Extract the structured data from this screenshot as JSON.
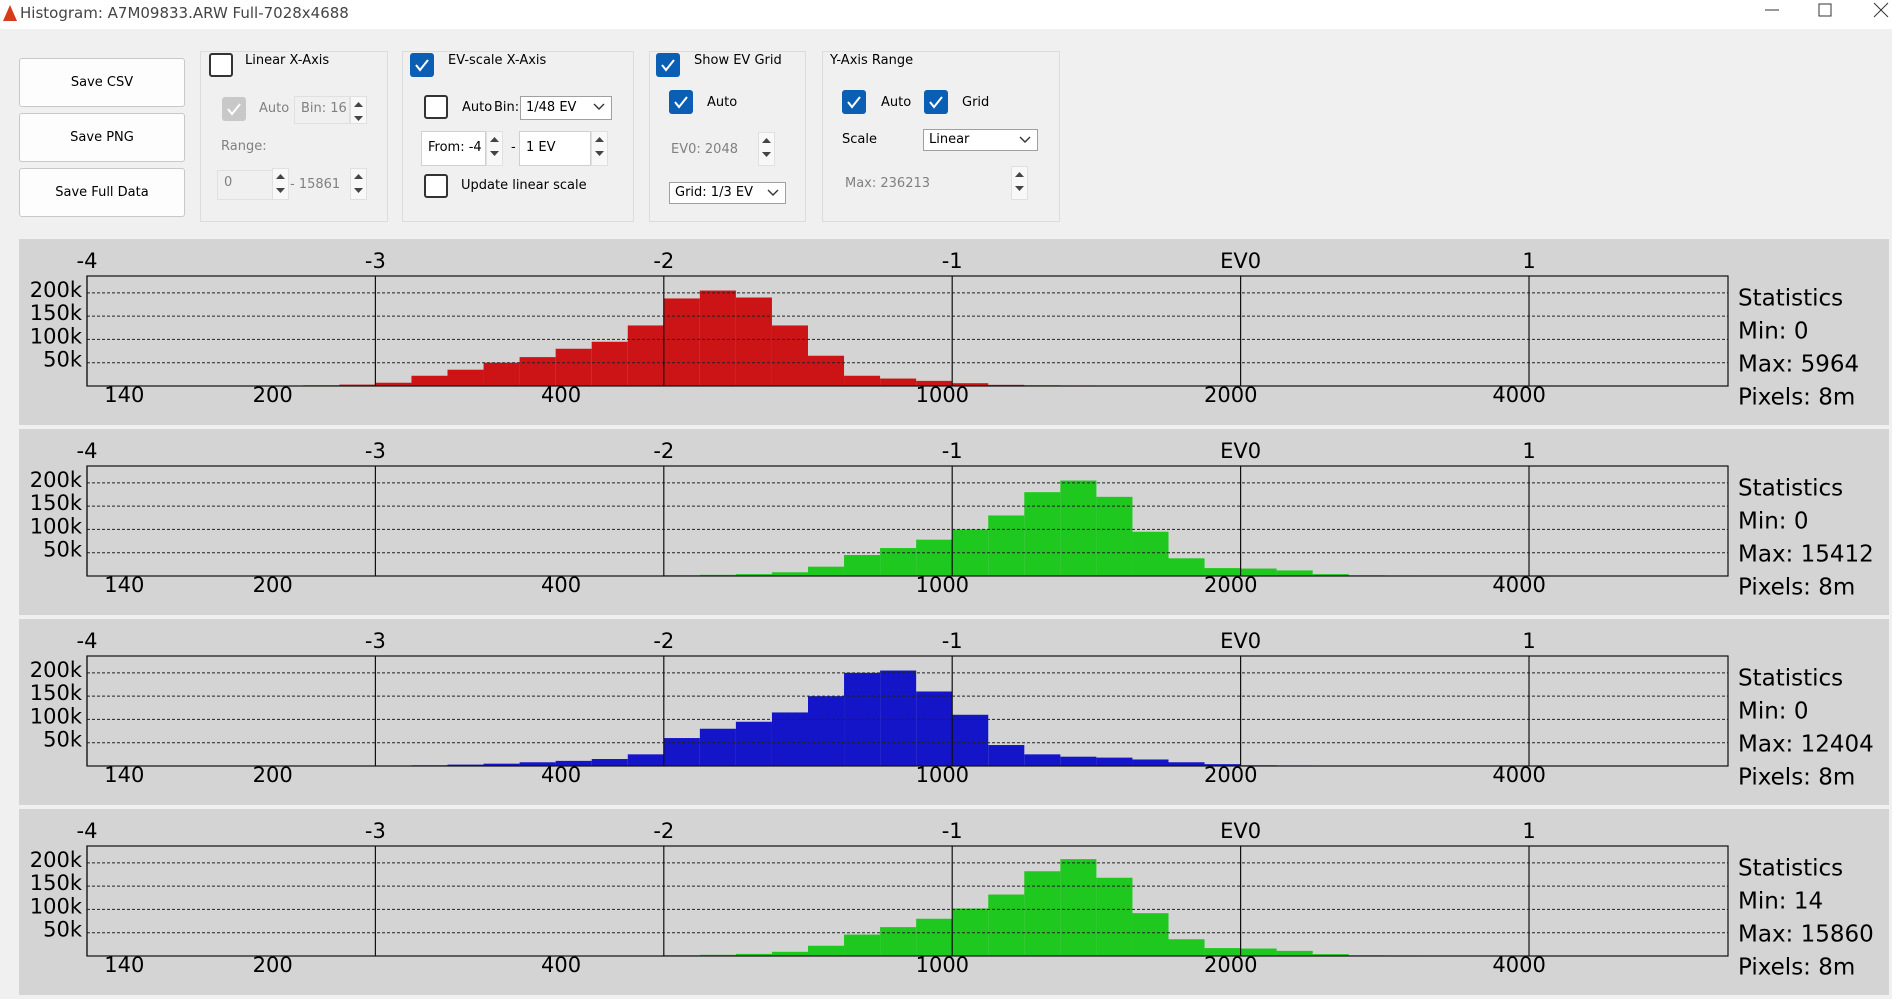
{
  "window": {
    "title": "Histogram: A7M09833.ARW Full-7028x4688"
  },
  "toolbar": {
    "buttons": [
      "Save CSV",
      "Save PNG",
      "Save Full Data"
    ],
    "linear": {
      "title": "Linear X-Axis",
      "auto": "Auto",
      "bin": "Bin: 16",
      "range": "Range:",
      "from": "0",
      "to": "- 15861"
    },
    "ev": {
      "title": "EV-scale X-Axis",
      "auto": "Auto",
      "bin_label": "Bin:",
      "bin": "1/48 EV",
      "from": "From: -4",
      "dash": "-",
      "to": "1 EV",
      "update": "Update linear scale"
    },
    "grid": {
      "title": "Show EV Grid",
      "auto": "Auto",
      "grid": "Grid: 1/3 EV"
    },
    "ev0": {
      "label": "EV0:",
      "value": 2048
    },
    "yaxis": {
      "title": "Y-Axis Range",
      "auto": "Auto",
      "grid": "Grid",
      "scale_label": "Scale",
      "scale": "Linear",
      "max": "Max: 236213"
    }
  },
  "chart_data": [
    {
      "type": "histogram",
      "color": "#cc1416",
      "grid": true,
      "bins": [
        -4,
        -3.875,
        -3.75,
        -3.625,
        -3.5,
        -3.375,
        -3.25,
        -3.125,
        -3,
        -2.875,
        -2.75,
        -2.625,
        -2.5,
        -2.375,
        -2.25,
        -2.125,
        -2,
        -1.875,
        -1.75,
        -1.625,
        -1.5,
        -1.375,
        -1.25,
        -1.125,
        -1,
        -0.875,
        -0.75,
        -0.625,
        -0.5,
        -0.375,
        -0.25,
        -0.125,
        0,
        0.125,
        0.25,
        0.375,
        0.5,
        0.625,
        0.75,
        0.875,
        1,
        1.125,
        1.25,
        1.375,
        1.5,
        1.625
      ],
      "values": [
        0,
        0,
        0,
        0,
        0,
        800,
        1500,
        3000,
        7000,
        22000,
        35000,
        50000,
        62000,
        80000,
        95000,
        130000,
        188000,
        205000,
        190000,
        130000,
        65000,
        22000,
        16000,
        11000,
        6000,
        2500,
        1500,
        1200,
        1000,
        1000,
        1000,
        1000,
        1000,
        1000,
        800,
        600,
        0,
        0,
        0,
        0,
        0,
        0,
        0,
        0,
        0
      ],
      "xlim": [
        -4,
        1.69
      ],
      "xticks": [
        -4,
        -3,
        -2,
        -1,
        {
          "value": 0,
          "label": "EV0"
        },
        1
      ],
      "x2ticks": [
        140,
        200,
        400,
        1000,
        2000,
        4000
      ],
      "ylim": [
        0,
        236213
      ],
      "yticks": [
        {
          "value": 50000,
          "label": "50k"
        },
        {
          "value": 100000,
          "label": "100k"
        },
        {
          "value": 150000,
          "label": "150k"
        },
        {
          "value": 200000,
          "label": "200k"
        }
      ],
      "statistics": {
        "title": "Statistics",
        "lines": [
          "Min: 0",
          "Max: 5964",
          "Pixels: 8m"
        ]
      }
    },
    {
      "type": "histogram",
      "color": "#1ec81e",
      "grid": true,
      "bins": [
        -4,
        -3.875,
        -3.75,
        -3.625,
        -3.5,
        -3.375,
        -3.25,
        -3.125,
        -3,
        -2.875,
        -2.75,
        -2.625,
        -2.5,
        -2.375,
        -2.25,
        -2.125,
        -2,
        -1.875,
        -1.75,
        -1.625,
        -1.5,
        -1.375,
        -1.25,
        -1.125,
        -1,
        -0.875,
        -0.75,
        -0.625,
        -0.5,
        -0.375,
        -0.25,
        -0.125,
        0,
        0.125,
        0.25,
        0.375,
        0.5,
        0.625,
        0.75,
        0.875,
        1,
        1.125,
        1.25,
        1.375,
        1.5,
        1.625
      ],
      "values": [
        0,
        0,
        0,
        0,
        0,
        0,
        0,
        0,
        0,
        0,
        0,
        0,
        0,
        0,
        0,
        1000,
        1500,
        2500,
        4000,
        8000,
        20000,
        45000,
        60000,
        78000,
        100000,
        130000,
        180000,
        205000,
        170000,
        95000,
        38000,
        17000,
        16000,
        12000,
        4000,
        1500,
        1200,
        1000,
        800,
        600,
        0,
        0,
        0,
        0,
        0
      ],
      "xlim": [
        -4,
        1.69
      ],
      "xticks": [
        -4,
        -3,
        -2,
        -1,
        {
          "value": 0,
          "label": "EV0"
        },
        1
      ],
      "x2ticks": [
        140,
        200,
        400,
        1000,
        2000,
        4000
      ],
      "ylim": [
        0,
        236213
      ],
      "yticks": [
        {
          "value": 50000,
          "label": "50k"
        },
        {
          "value": 100000,
          "label": "100k"
        },
        {
          "value": 150000,
          "label": "150k"
        },
        {
          "value": 200000,
          "label": "200k"
        }
      ],
      "statistics": {
        "title": "Statistics",
        "lines": [
          "Min: 0",
          "Max: 15412",
          "Pixels: 8m"
        ]
      }
    },
    {
      "type": "histogram",
      "color": "#1414c8",
      "grid": true,
      "bins": [
        -4,
        -3.875,
        -3.75,
        -3.625,
        -3.5,
        -3.375,
        -3.25,
        -3.125,
        -3,
        -2.875,
        -2.75,
        -2.625,
        -2.5,
        -2.375,
        -2.25,
        -2.125,
        -2,
        -1.875,
        -1.75,
        -1.625,
        -1.5,
        -1.375,
        -1.25,
        -1.125,
        -1,
        -0.875,
        -0.75,
        -0.625,
        -0.5,
        -0.375,
        -0.25,
        -0.125,
        0,
        0.125,
        0.25,
        0.375,
        0.5,
        0.625,
        0.75,
        0.875,
        1,
        1.125,
        1.25,
        1.375,
        1.5,
        1.625
      ],
      "values": [
        0,
        0,
        0,
        0,
        0,
        0,
        0,
        0,
        1000,
        1500,
        3000,
        5000,
        8000,
        11000,
        15000,
        25000,
        60000,
        80000,
        95000,
        115000,
        150000,
        200000,
        205000,
        160000,
        110000,
        45000,
        25000,
        20000,
        18000,
        14000,
        8000,
        4000,
        1500,
        1200,
        1000,
        1000,
        1000,
        800,
        800,
        600,
        0,
        0,
        0,
        0,
        0
      ],
      "xlim": [
        -4,
        1.69
      ],
      "xticks": [
        -4,
        -3,
        -2,
        -1,
        {
          "value": 0,
          "label": "EV0"
        },
        1
      ],
      "x2ticks": [
        140,
        200,
        400,
        1000,
        2000,
        4000
      ],
      "ylim": [
        0,
        236213
      ],
      "yticks": [
        {
          "value": 50000,
          "label": "50k"
        },
        {
          "value": 100000,
          "label": "100k"
        },
        {
          "value": 150000,
          "label": "150k"
        },
        {
          "value": 200000,
          "label": "200k"
        }
      ],
      "statistics": {
        "title": "Statistics",
        "lines": [
          "Min: 0",
          "Max: 12404",
          "Pixels: 8m"
        ]
      }
    },
    {
      "type": "histogram",
      "color": "#1ec81e",
      "grid": true,
      "bins": [
        -4,
        -3.875,
        -3.75,
        -3.625,
        -3.5,
        -3.375,
        -3.25,
        -3.125,
        -3,
        -2.875,
        -2.75,
        -2.625,
        -2.5,
        -2.375,
        -2.25,
        -2.125,
        -2,
        -1.875,
        -1.75,
        -1.625,
        -1.5,
        -1.375,
        -1.25,
        -1.125,
        -1,
        -0.875,
        -0.75,
        -0.625,
        -0.5,
        -0.375,
        -0.25,
        -0.125,
        0,
        0.125,
        0.25,
        0.375,
        0.5,
        0.625,
        0.75,
        0.875,
        1,
        1.125,
        1.25,
        1.375,
        1.5,
        1.625
      ],
      "values": [
        0,
        0,
        0,
        0,
        0,
        0,
        0,
        0,
        0,
        0,
        0,
        0,
        0,
        0,
        0,
        1000,
        1500,
        2500,
        4500,
        9000,
        22000,
        46000,
        62000,
        80000,
        102000,
        132000,
        182000,
        208000,
        168000,
        92000,
        36000,
        17000,
        16000,
        11000,
        4000,
        1500,
        1200,
        1000,
        800,
        600,
        0,
        0,
        0,
        0,
        0
      ],
      "xlim": [
        -4,
        1.69
      ],
      "xticks": [
        -4,
        -3,
        -2,
        -1,
        {
          "value": 0,
          "label": "EV0"
        },
        1
      ],
      "x2ticks": [
        140,
        200,
        400,
        1000,
        2000,
        4000
      ],
      "ylim": [
        0,
        236213
      ],
      "yticks": [
        {
          "value": 50000,
          "label": "50k"
        },
        {
          "value": 100000,
          "label": "100k"
        },
        {
          "value": 150000,
          "label": "150k"
        },
        {
          "value": 200000,
          "label": "200k"
        }
      ],
      "statistics": {
        "title": "Statistics",
        "lines": [
          "Min: 14",
          "Max: 15860",
          "Pixels: 8m"
        ]
      }
    }
  ]
}
